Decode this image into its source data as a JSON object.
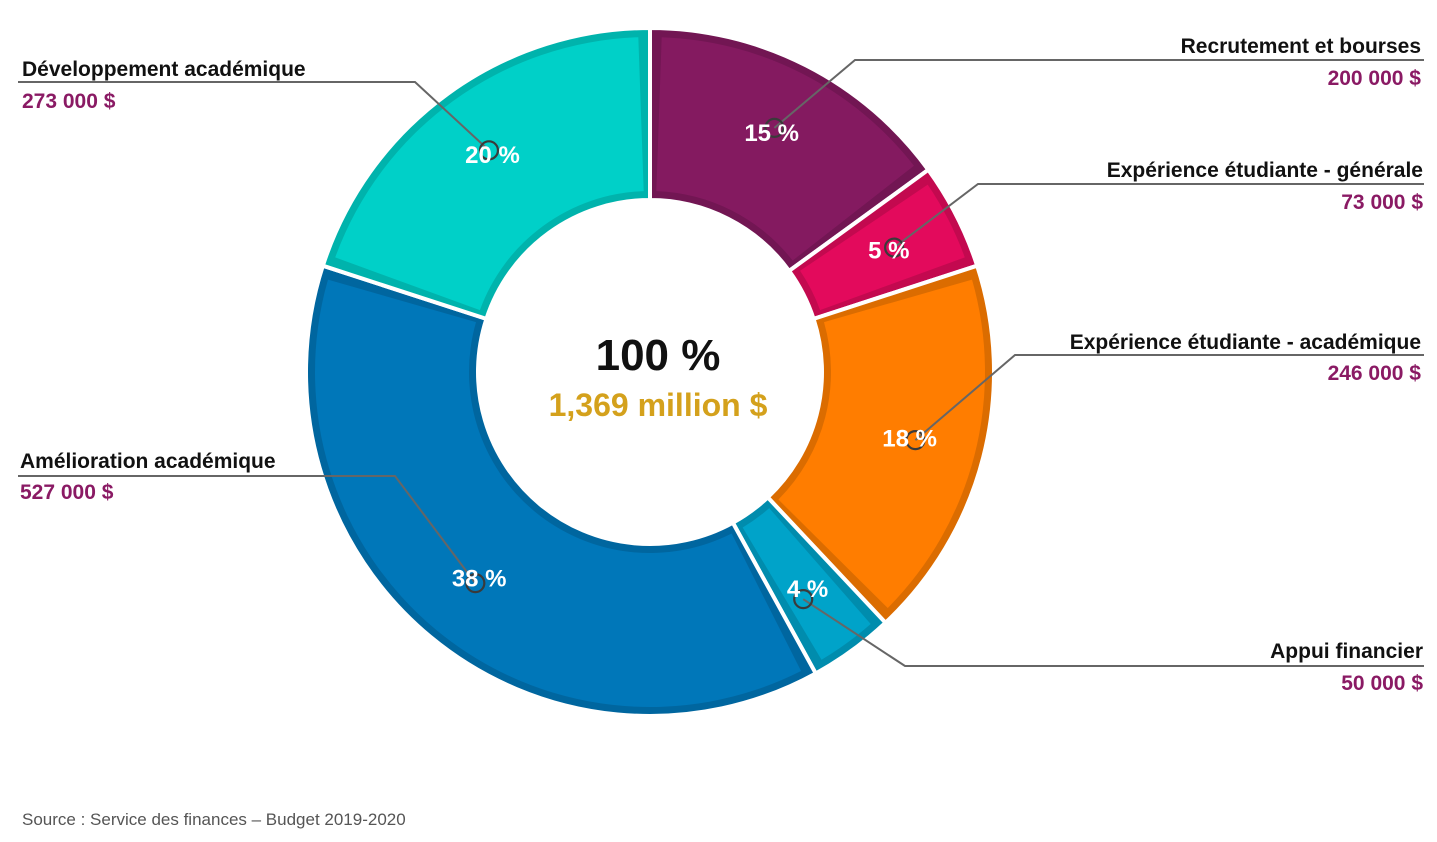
{
  "chart_data": {
    "type": "pie",
    "variant": "donut",
    "total_label": "100 %",
    "total_value_label": "1,369 million $",
    "slices": [
      {
        "name": "Recrutement et bourses",
        "amount_label": "200 000 $",
        "percent_label": "15 %",
        "value": 15,
        "color": "#841a60"
      },
      {
        "name": "Expérience étudiante - générale",
        "amount_label": "73 000 $",
        "percent_label": "5 %",
        "value": 5,
        "color": "#e30a5c"
      },
      {
        "name": "Expérience étudiante - académique",
        "amount_label": "246 000 $",
        "percent_label": "18 %",
        "value": 18,
        "color": "#ff7d00"
      },
      {
        "name": "Appui financier",
        "amount_label": "50 000 $",
        "percent_label": "4 %",
        "value": 4,
        "color": "#00a3c9"
      },
      {
        "name": "Amélioration académique",
        "amount_label": "527 000 $",
        "percent_label": "38 %",
        "value": 38,
        "color": "#0077b9"
      },
      {
        "name": "Développement académique",
        "amount_label": "273 000 $",
        "percent_label": "20 %",
        "value": 20,
        "color": "#00d0c8"
      }
    ],
    "colors": {
      "amount_text": "#8a1a64",
      "total_value_text": "#d4a11c",
      "leader_line": "#666666"
    }
  },
  "source_text": "Source : Service des finances – Budget 2019-2020"
}
